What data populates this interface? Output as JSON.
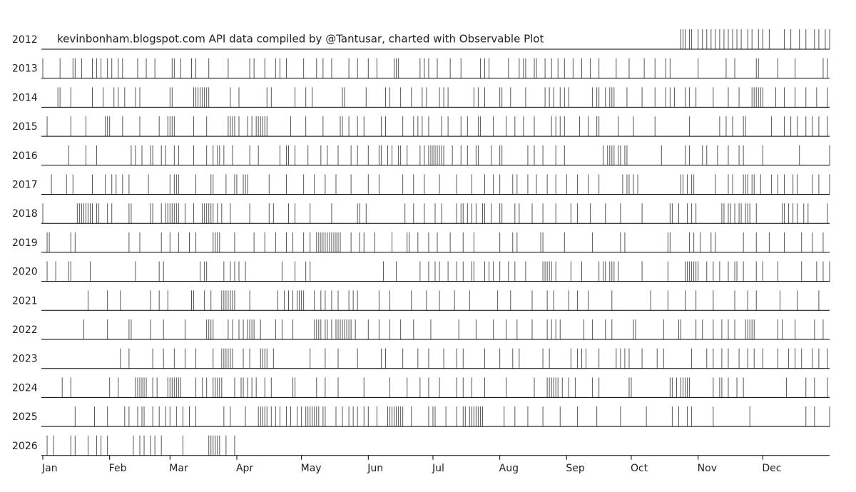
{
  "chart_data": {
    "type": "tick",
    "title": "kevinbonham.blogspot.com API data compiled by @Tantusar, charted with Observable Plot",
    "color": "#555555",
    "xlim": [
      0,
      365
    ],
    "xticks": [
      {
        "value": 0,
        "label": "Jan"
      },
      {
        "value": 31,
        "label": "Feb"
      },
      {
        "value": 59,
        "label": "Mar"
      },
      {
        "value": 90,
        "label": "Apr"
      },
      {
        "value": 120,
        "label": "May"
      },
      {
        "value": 151,
        "label": "Jun"
      },
      {
        "value": 181,
        "label": "Jul"
      },
      {
        "value": 212,
        "label": "Aug"
      },
      {
        "value": 243,
        "label": "Sep"
      },
      {
        "value": 273,
        "label": "Oct"
      },
      {
        "value": 304,
        "label": "Nov"
      },
      {
        "value": 334,
        "label": "Dec"
      }
    ],
    "series": [
      {
        "name": "2012",
        "values": [
          296,
          297,
          298,
          300,
          301,
          304,
          306,
          308,
          310,
          312,
          314,
          316,
          318,
          320,
          322,
          324,
          327,
          329,
          332,
          334,
          337,
          344,
          347,
          351,
          354,
          358,
          360,
          363,
          365
        ]
      },
      {
        "name": "2013",
        "values": [
          0,
          8,
          14,
          15,
          18,
          23,
          25,
          27,
          30,
          32,
          35,
          37,
          44,
          48,
          52,
          60,
          61,
          64,
          69,
          71,
          77,
          86,
          96,
          98,
          103,
          108,
          110,
          113,
          121,
          127,
          130,
          134,
          142,
          146,
          151,
          155,
          163,
          164,
          165,
          175,
          177,
          179,
          183,
          189,
          194,
          203,
          205,
          207,
          216,
          221,
          223,
          224,
          228,
          229,
          233,
          236,
          239,
          242,
          246,
          250,
          254,
          258,
          266,
          272,
          279,
          284,
          289,
          291,
          304,
          317,
          321,
          331,
          332,
          341,
          349,
          362,
          364
        ]
      },
      {
        "name": "2014",
        "values": [
          7,
          8,
          13,
          23,
          28,
          33,
          35,
          38,
          43,
          45,
          59,
          60,
          70,
          71,
          72,
          73,
          74,
          75,
          76,
          77,
          87,
          91,
          104,
          106,
          117,
          122,
          125,
          139,
          140,
          150,
          159,
          161,
          166,
          171,
          176,
          178,
          184,
          186,
          188,
          200,
          202,
          205,
          212,
          213,
          217,
          224,
          233,
          235,
          237,
          240,
          242,
          244,
          255,
          257,
          258,
          261,
          263,
          264,
          265,
          271,
          278,
          284,
          289,
          291,
          293,
          298,
          300,
          303,
          311,
          318,
          323,
          329,
          330,
          331,
          332,
          333,
          334,
          340,
          344,
          349,
          354,
          359,
          364
        ]
      },
      {
        "name": "2015",
        "values": [
          2,
          13,
          20,
          29,
          30,
          31,
          37,
          45,
          54,
          58,
          59,
          60,
          61,
          70,
          76,
          86,
          87,
          88,
          89,
          91,
          95,
          97,
          99,
          100,
          101,
          102,
          103,
          104,
          115,
          122,
          130,
          138,
          139,
          142,
          146,
          149,
          157,
          159,
          167,
          172,
          174,
          176,
          179,
          185,
          188,
          194,
          197,
          202,
          203,
          209,
          215,
          219,
          223,
          228,
          236,
          238,
          240,
          242,
          249,
          253,
          257,
          258,
          267,
          274,
          284,
          300,
          314,
          317,
          320,
          325,
          326,
          338,
          344,
          347,
          350,
          354,
          357,
          360,
          364
        ]
      },
      {
        "name": "2016",
        "values": [
          12,
          20,
          25,
          41,
          43,
          46,
          50,
          51,
          55,
          57,
          61,
          63,
          70,
          76,
          79,
          81,
          82,
          84,
          88,
          96,
          100,
          110,
          113,
          114,
          117,
          123,
          129,
          132,
          137,
          143,
          146,
          151,
          156,
          157,
          160,
          162,
          165,
          166,
          169,
          175,
          177,
          179,
          180,
          181,
          182,
          183,
          184,
          185,
          186,
          190,
          194,
          197,
          201,
          202,
          208,
          212,
          213,
          225,
          228,
          232,
          238,
          242,
          260,
          262,
          263,
          264,
          265,
          267,
          268,
          270,
          271,
          287,
          298,
          300,
          306,
          308,
          313,
          318,
          323,
          325,
          334,
          351,
          365
        ]
      },
      {
        "name": "2017",
        "values": [
          4,
          11,
          14,
          23,
          29,
          32,
          34,
          37,
          40,
          49,
          59,
          61,
          62,
          63,
          71,
          78,
          79,
          85,
          89,
          90,
          93,
          94,
          95,
          105,
          113,
          121,
          126,
          131,
          136,
          143,
          151,
          156,
          167,
          172,
          177,
          184,
          192,
          199,
          205,
          209,
          212,
          218,
          220,
          225,
          229,
          234,
          238,
          243,
          248,
          253,
          258,
          269,
          271,
          272,
          274,
          276,
          296,
          297,
          299,
          301,
          302,
          312,
          318,
          320,
          325,
          326,
          327,
          329,
          330,
          333,
          338,
          341,
          344,
          348,
          350,
          357,
          360,
          365
        ]
      },
      {
        "name": "2018",
        "values": [
          0,
          16,
          17,
          18,
          19,
          20,
          21,
          22,
          23,
          25,
          26,
          30,
          32,
          40,
          41,
          50,
          51,
          55,
          57,
          58,
          59,
          60,
          61,
          62,
          63,
          66,
          70,
          74,
          75,
          76,
          77,
          78,
          79,
          81,
          83,
          87,
          96,
          105,
          107,
          114,
          117,
          124,
          134,
          146,
          147,
          150,
          168,
          172,
          177,
          182,
          185,
          192,
          194,
          195,
          197,
          199,
          201,
          204,
          205,
          208,
          212,
          213,
          219,
          221,
          227,
          232,
          238,
          245,
          248,
          254,
          261,
          268,
          278,
          291,
          292,
          295,
          299,
          301,
          303,
          315,
          316,
          318,
          319,
          321,
          323,
          324,
          326,
          327,
          328,
          331,
          343,
          344,
          346,
          348,
          350,
          353,
          355,
          364
        ]
      },
      {
        "name": "2019",
        "values": [
          2,
          3,
          13,
          15,
          40,
          45,
          55,
          59,
          63,
          68,
          71,
          79,
          80,
          81,
          82,
          89,
          98,
          103,
          108,
          113,
          116,
          121,
          124,
          127,
          128,
          129,
          130,
          131,
          132,
          133,
          134,
          135,
          136,
          137,
          138,
          143,
          147,
          149,
          154,
          162,
          169,
          170,
          174,
          179,
          183,
          189,
          195,
          200,
          212,
          218,
          220,
          231,
          232,
          242,
          255,
          268,
          270,
          290,
          291,
          300,
          302,
          305,
          310,
          312,
          325,
          331,
          337,
          344,
          352,
          357,
          362
        ]
      },
      {
        "name": "2020",
        "values": [
          2,
          6,
          12,
          13,
          22,
          43,
          54,
          56,
          73,
          75,
          76,
          84,
          87,
          89,
          91,
          94,
          111,
          117,
          122,
          124,
          158,
          164,
          175,
          179,
          182,
          184,
          188,
          192,
          195,
          199,
          200,
          205,
          207,
          209,
          212,
          216,
          219,
          224,
          232,
          233,
          234,
          235,
          236,
          238,
          245,
          250,
          258,
          260,
          261,
          263,
          264,
          265,
          267,
          278,
          290,
          298,
          299,
          300,
          301,
          302,
          303,
          304,
          308,
          311,
          314,
          318,
          321,
          322,
          325,
          331,
          334,
          341,
          352,
          359,
          362,
          365
        ]
      },
      {
        "name": "2021",
        "values": [
          21,
          30,
          36,
          50,
          54,
          58,
          69,
          70,
          75,
          78,
          83,
          84,
          85,
          86,
          87,
          88,
          89,
          96,
          109,
          112,
          114,
          116,
          118,
          119,
          120,
          121,
          126,
          129,
          131,
          134,
          137,
          142,
          144,
          146,
          156,
          161,
          171,
          178,
          184,
          191,
          198,
          211,
          217,
          227,
          234,
          237,
          244,
          248,
          253,
          264,
          282,
          290,
          298,
          303,
          311,
          321,
          327,
          331,
          342,
          350,
          360
        ]
      },
      {
        "name": "2022",
        "values": [
          19,
          30,
          40,
          41,
          50,
          56,
          66,
          76,
          77,
          78,
          79,
          86,
          88,
          91,
          93,
          95,
          96,
          97,
          98,
          101,
          108,
          111,
          116,
          126,
          127,
          128,
          129,
          131,
          132,
          134,
          136,
          137,
          138,
          139,
          140,
          141,
          142,
          143,
          145,
          151,
          156,
          161,
          166,
          172,
          180,
          193,
          201,
          209,
          215,
          220,
          227,
          234,
          236,
          238,
          240,
          251,
          255,
          261,
          264,
          274,
          275,
          288,
          295,
          296,
          303,
          306,
          311,
          315,
          318,
          321,
          326,
          327,
          328,
          329,
          330,
          341,
          343,
          349,
          358,
          362
        ]
      },
      {
        "name": "2023",
        "values": [
          36,
          40,
          51,
          56,
          61,
          66,
          71,
          79,
          83,
          84,
          85,
          86,
          87,
          88,
          93,
          96,
          101,
          102,
          103,
          104,
          107,
          124,
          131,
          137,
          146,
          157,
          159,
          167,
          174,
          179,
          186,
          192,
          195,
          205,
          212,
          218,
          221,
          232,
          235,
          245,
          248,
          250,
          252,
          258,
          266,
          268,
          270,
          272,
          278,
          285,
          288,
          301,
          308,
          311,
          315,
          318,
          323,
          327,
          330,
          334,
          341,
          346,
          349,
          352,
          357,
          360,
          364
        ]
      },
      {
        "name": "2024",
        "values": [
          9,
          13,
          31,
          35,
          43,
          44,
          45,
          46,
          47,
          48,
          51,
          53,
          58,
          59,
          60,
          61,
          62,
          63,
          64,
          71,
          74,
          76,
          79,
          80,
          81,
          82,
          83,
          89,
          92,
          93,
          95,
          97,
          99,
          103,
          106,
          116,
          117,
          127,
          131,
          137,
          149,
          161,
          169,
          175,
          179,
          184,
          192,
          195,
          199,
          205,
          215,
          228,
          234,
          235,
          236,
          237,
          238,
          239,
          241,
          244,
          247,
          255,
          258,
          272,
          273,
          291,
          292,
          294,
          296,
          297,
          298,
          299,
          300,
          311,
          314,
          315,
          318,
          322,
          325,
          345,
          354,
          358,
          364
        ]
      },
      {
        "name": "2025",
        "values": [
          15,
          24,
          30,
          38,
          40,
          44,
          46,
          47,
          51,
          54,
          57,
          59,
          62,
          65,
          68,
          71,
          84,
          87,
          94,
          100,
          101,
          102,
          103,
          104,
          106,
          108,
          110,
          113,
          115,
          118,
          120,
          122,
          123,
          124,
          125,
          126,
          127,
          128,
          130,
          131,
          136,
          139,
          142,
          144,
          146,
          149,
          151,
          155,
          160,
          161,
          162,
          163,
          164,
          165,
          166,
          167,
          171,
          179,
          181,
          182,
          187,
          192,
          195,
          196,
          198,
          199,
          200,
          201,
          202,
          203,
          204,
          214,
          219,
          225,
          232,
          240,
          248,
          257,
          268,
          280,
          292,
          295,
          299,
          301,
          311,
          328,
          354,
          358,
          365
        ]
      },
      {
        "name": "2026",
        "values": [
          2,
          5,
          13,
          15,
          21,
          25,
          27,
          30,
          42,
          45,
          47,
          50,
          52,
          55,
          65,
          77,
          78,
          79,
          80,
          81,
          82,
          85,
          89
        ]
      }
    ]
  }
}
